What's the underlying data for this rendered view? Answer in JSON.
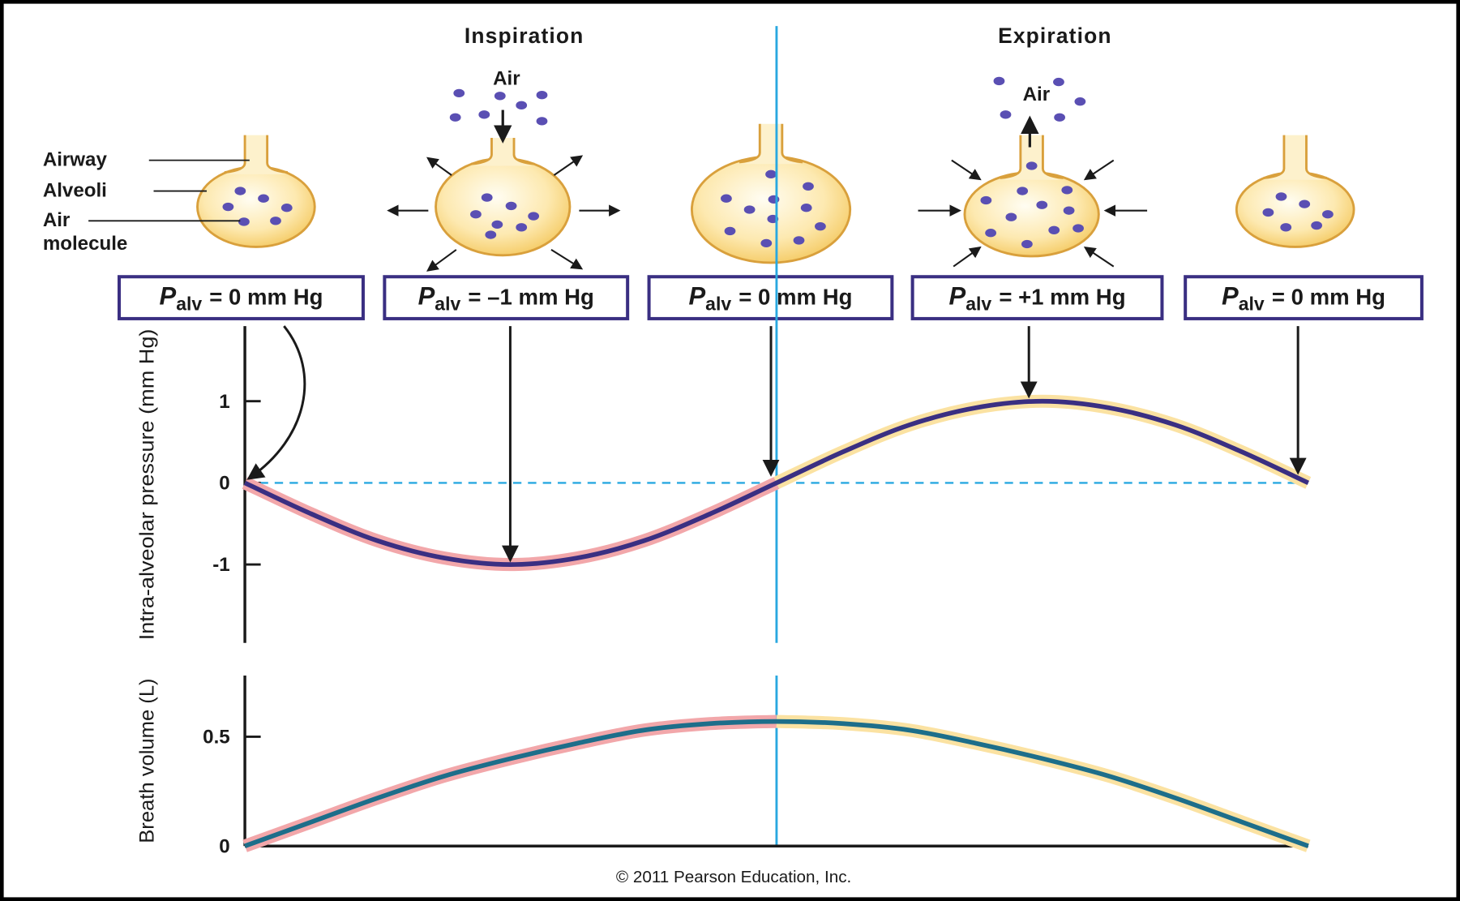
{
  "header": {
    "inspiration": "Inspiration",
    "expiration": "Expiration"
  },
  "labels": {
    "airway": "Airway",
    "alveoli": "Alveoli",
    "air_molecule": [
      "Air",
      "molecule"
    ],
    "air_in": "Air",
    "air_out": "Air"
  },
  "boxes": [
    {
      "symbol": "P",
      "subscript": "alv",
      "text": "= 0 mm Hg"
    },
    {
      "symbol": "P",
      "subscript": "alv",
      "text": "= –1 mm Hg"
    },
    {
      "symbol": "P",
      "subscript": "alv",
      "text": "= 0 mm Hg"
    },
    {
      "symbol": "P",
      "subscript": "alv",
      "text": "= +1 mm Hg"
    },
    {
      "symbol": "P",
      "subscript": "alv",
      "text": "= 0 mm Hg"
    }
  ],
  "copyright": "© 2011 Pearson Education, Inc.",
  "chart_data": [
    {
      "type": "line",
      "y_label": "Intra-alveolar pressure (mm Hg)",
      "categories": [
        null,
        null,
        null,
        null,
        null,
        null,
        null,
        null,
        null,
        null,
        null,
        null,
        null,
        null,
        null,
        null,
        null
      ],
      "series": [
        {
          "color": "#3a2f82",
          "values": [
            0,
            -0.38,
            -0.71,
            -0.92,
            -1,
            -0.92,
            -0.71,
            -0.38,
            0,
            0.38,
            0.71,
            0.92,
            1,
            0.92,
            0.71,
            0.38,
            0
          ]
        }
      ],
      "halo_colors": [
        "#f2a7aa",
        "#fbe2a2"
      ],
      "ylim": [
        -1.96,
        1.92
      ],
      "yticks": [
        -1,
        0,
        1
      ],
      "zero_line": true
    },
    {
      "type": "line",
      "y_label": "Breath volume (L)",
      "categories": [
        null,
        null,
        null,
        null,
        null,
        null,
        null,
        null,
        null,
        null,
        null,
        null,
        null,
        null,
        null,
        null,
        null
      ],
      "series": [
        {
          "color": "#1d6e8a",
          "values": [
            0,
            0.11,
            0.22,
            0.32,
            0.4,
            0.47,
            0.53,
            0.56,
            0.57,
            0.56,
            0.53,
            0.47,
            0.4,
            0.32,
            0.22,
            0.11,
            0
          ]
        }
      ],
      "halo_colors": [
        "#f2a7aa",
        "#fbe2a2"
      ],
      "ylim": [
        0,
        0.78
      ],
      "yticks": [
        0,
        0.5
      ],
      "zero_line": false
    }
  ]
}
